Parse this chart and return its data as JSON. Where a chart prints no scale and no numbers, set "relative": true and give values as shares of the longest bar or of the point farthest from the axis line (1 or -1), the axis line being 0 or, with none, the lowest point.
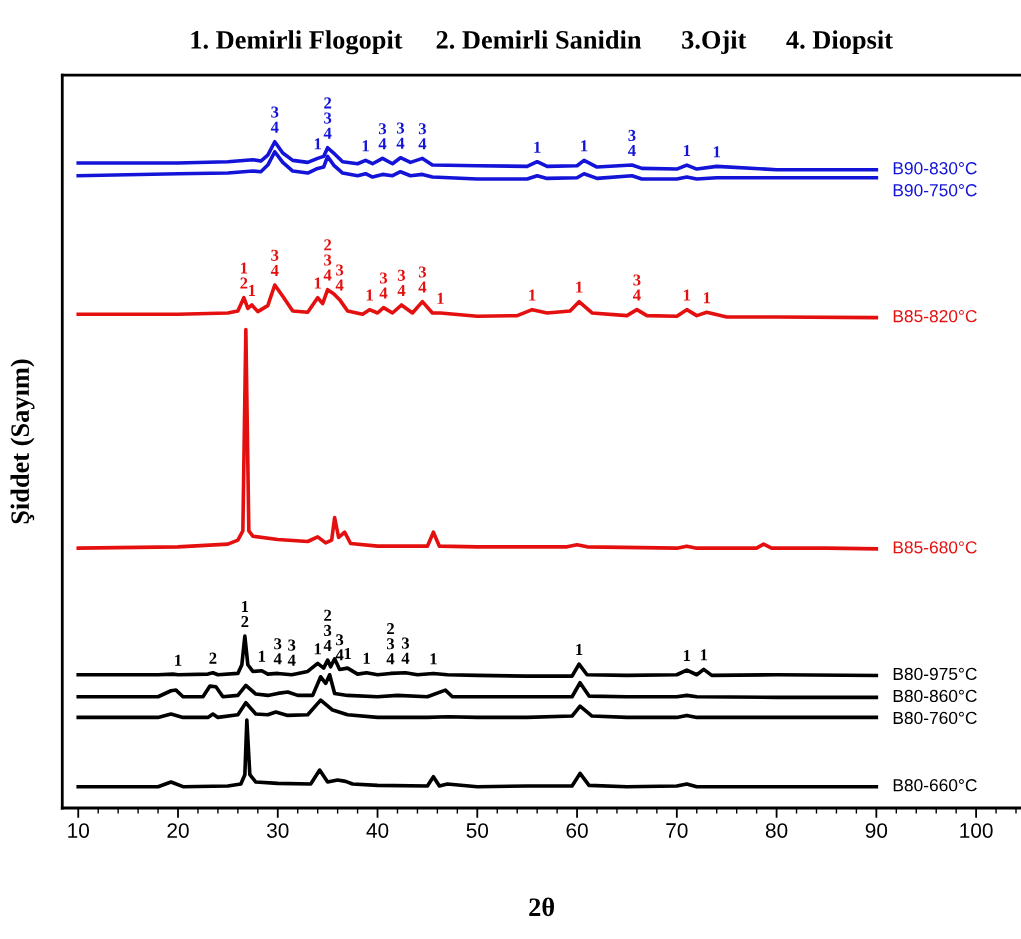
{
  "chart_data": {
    "type": "line",
    "title": "1. Demirli Flogopit     2. Demirli Sanidin      3.Ojit      4. Diopsit",
    "xlabel": "2θ",
    "ylabel": "Şiddet (Sayım)",
    "relative": true,
    "xlim": [
      8.4,
      104.5
    ],
    "xticks": [
      10,
      20,
      30,
      40,
      50,
      60,
      70,
      80,
      90,
      100
    ],
    "grid": false,
    "legend": false,
    "marker": "none",
    "line_style": "solid",
    "series": [
      {
        "name": "B90-830°C",
        "color": "#1414d8",
        "x": [
          10,
          20,
          25,
          27.5,
          28.3,
          29,
          29.7,
          30.5,
          31.5,
          33,
          34,
          34.6,
          35,
          35.6,
          36.5,
          38,
          38.8,
          39.5,
          40.5,
          41.5,
          42.3,
          43.3,
          44.5,
          45.5,
          50,
          55,
          56,
          57,
          60,
          60.7,
          62,
          65.5,
          66.5,
          70,
          71,
          72,
          74,
          80,
          90
        ],
        "values": [
          0.968,
          0.968,
          0.97,
          0.973,
          0.971,
          0.98,
          1.0,
          0.983,
          0.972,
          0.969,
          0.975,
          0.978,
          0.991,
          0.983,
          0.97,
          0.967,
          0.972,
          0.967,
          0.975,
          0.967,
          0.976,
          0.969,
          0.975,
          0.965,
          0.964,
          0.963,
          0.97,
          0.963,
          0.964,
          0.972,
          0.962,
          0.965,
          0.96,
          0.959,
          0.965,
          0.959,
          0.963,
          0.958,
          0.958
        ]
      },
      {
        "name": "B90-750°C",
        "color": "#1414d8",
        "x": [
          10,
          20,
          25,
          27.5,
          28.3,
          29,
          29.7,
          30.5,
          31.5,
          33,
          34,
          34.6,
          35,
          35.6,
          36.5,
          38,
          38.8,
          39.5,
          40.5,
          41.5,
          42.3,
          43.3,
          44.5,
          45.5,
          50,
          55,
          56,
          57,
          60,
          60.7,
          62,
          65.5,
          66.5,
          70,
          71,
          72,
          74,
          80,
          90
        ],
        "values": [
          0.949,
          0.952,
          0.953,
          0.956,
          0.955,
          0.965,
          0.985,
          0.969,
          0.956,
          0.953,
          0.96,
          0.962,
          0.978,
          0.965,
          0.953,
          0.949,
          0.952,
          0.947,
          0.951,
          0.949,
          0.955,
          0.949,
          0.951,
          0.947,
          0.944,
          0.944,
          0.949,
          0.945,
          0.946,
          0.952,
          0.945,
          0.949,
          0.944,
          0.944,
          0.947,
          0.944,
          0.946,
          0.946,
          0.946
        ]
      },
      {
        "name": "B85-820°C",
        "color": "#e41010",
        "x": [
          10,
          20,
          25,
          26,
          26.6,
          27,
          27.4,
          28,
          29,
          29.7,
          30.5,
          31.5,
          33,
          34,
          34.5,
          35,
          35.6,
          36.2,
          37,
          38.5,
          39.2,
          40,
          40.6,
          41.5,
          42.4,
          43.5,
          44.5,
          45.5,
          46.3,
          50,
          54,
          55.5,
          57,
          59.3,
          60.2,
          61.5,
          65,
          66,
          67,
          70,
          71,
          72,
          73,
          75,
          80,
          90
        ],
        "values": [
          0.741,
          0.741,
          0.743,
          0.746,
          0.766,
          0.75,
          0.755,
          0.745,
          0.754,
          0.785,
          0.768,
          0.746,
          0.744,
          0.766,
          0.757,
          0.778,
          0.772,
          0.763,
          0.746,
          0.741,
          0.748,
          0.743,
          0.751,
          0.743,
          0.755,
          0.743,
          0.76,
          0.743,
          0.743,
          0.738,
          0.739,
          0.748,
          0.743,
          0.746,
          0.76,
          0.743,
          0.739,
          0.748,
          0.739,
          0.738,
          0.748,
          0.739,
          0.744,
          0.737,
          0.737,
          0.736
        ]
      },
      {
        "name": "B85-680°C",
        "color": "#e41010",
        "x": [
          10,
          20,
          25,
          26,
          26.5,
          26.8,
          27.1,
          27.5,
          30,
          33,
          34,
          34.8,
          35.4,
          35.7,
          36.1,
          36.7,
          37.3,
          40,
          45,
          45.6,
          46.2,
          50,
          55,
          59,
          60,
          61,
          70,
          71,
          72,
          78,
          78.7,
          79.5,
          85,
          90
        ],
        "values": [
          0.39,
          0.392,
          0.396,
          0.402,
          0.416,
          0.718,
          0.416,
          0.408,
          0.403,
          0.4,
          0.407,
          0.398,
          0.402,
          0.436,
          0.406,
          0.414,
          0.397,
          0.393,
          0.393,
          0.414,
          0.393,
          0.392,
          0.392,
          0.392,
          0.395,
          0.392,
          0.39,
          0.393,
          0.39,
          0.39,
          0.396,
          0.39,
          0.39,
          0.389
        ]
      },
      {
        "name": "B80-975°C",
        "color": "#000000",
        "x": [
          10,
          18,
          19.5,
          20,
          23,
          23.5,
          24,
          26,
          26.4,
          26.7,
          27,
          27.5,
          28.4,
          29,
          30,
          31.4,
          33,
          34,
          34.6,
          35,
          35.3,
          35.7,
          36.2,
          37,
          38,
          38.9,
          40,
          41.3,
          42.8,
          44,
          45.6,
          47,
          50,
          55,
          59.5,
          60.2,
          61,
          65,
          70,
          71,
          72,
          72.7,
          73.5,
          80,
          90
        ],
        "values": [
          0.2,
          0.2,
          0.201,
          0.2,
          0.201,
          0.203,
          0.2,
          0.202,
          0.215,
          0.258,
          0.215,
          0.205,
          0.206,
          0.201,
          0.202,
          0.2,
          0.205,
          0.217,
          0.21,
          0.222,
          0.212,
          0.224,
          0.208,
          0.21,
          0.201,
          0.203,
          0.2,
          0.202,
          0.203,
          0.2,
          0.202,
          0.2,
          0.199,
          0.198,
          0.198,
          0.216,
          0.2,
          0.199,
          0.2,
          0.207,
          0.2,
          0.208,
          0.199,
          0.2,
          0.199
        ]
      },
      {
        "name": "B80-860°C",
        "color": "#000000",
        "x": [
          10,
          18,
          19.3,
          19.8,
          20.5,
          22.5,
          23.2,
          23.8,
          24.5,
          26,
          26.8,
          27.8,
          29,
          30,
          31,
          32,
          33.5,
          34.3,
          34.8,
          35.2,
          35.7,
          37,
          40,
          42,
          45,
          46.8,
          47.5,
          50,
          55,
          59.5,
          60.3,
          61.2,
          65,
          70,
          71,
          72,
          80,
          90
        ],
        "values": [
          0.167,
          0.167,
          0.176,
          0.177,
          0.167,
          0.167,
          0.183,
          0.182,
          0.167,
          0.169,
          0.184,
          0.171,
          0.169,
          0.172,
          0.174,
          0.169,
          0.169,
          0.197,
          0.187,
          0.2,
          0.172,
          0.169,
          0.167,
          0.169,
          0.167,
          0.177,
          0.167,
          0.167,
          0.167,
          0.167,
          0.188,
          0.168,
          0.167,
          0.167,
          0.169,
          0.167,
          0.166,
          0.166
        ]
      },
      {
        "name": "B80-760°C",
        "color": "#000000",
        "x": [
          10,
          18,
          19.3,
          20.5,
          23,
          23.5,
          24,
          26,
          26.8,
          27.8,
          29,
          29.8,
          31,
          33,
          34.3,
          35.5,
          37,
          40,
          45,
          47,
          50,
          55,
          59.5,
          60.3,
          61.5,
          65,
          70,
          71,
          72,
          80,
          90
        ],
        "values": [
          0.136,
          0.136,
          0.141,
          0.136,
          0.136,
          0.141,
          0.136,
          0.14,
          0.158,
          0.141,
          0.14,
          0.144,
          0.139,
          0.14,
          0.162,
          0.147,
          0.14,
          0.136,
          0.136,
          0.137,
          0.136,
          0.136,
          0.138,
          0.153,
          0.138,
          0.136,
          0.136,
          0.139,
          0.136,
          0.136,
          0.136
        ]
      },
      {
        "name": "B80-660°C",
        "color": "#000000",
        "x": [
          10,
          18,
          19.3,
          20.5,
          25,
          26.3,
          26.7,
          26.9,
          27.2,
          27.8,
          30,
          33.3,
          34.2,
          35,
          36,
          36.8,
          37.5,
          40,
          45,
          45.6,
          46.2,
          47,
          50,
          55,
          59.5,
          60.3,
          61.2,
          65,
          70,
          71,
          72,
          80,
          90
        ],
        "values": [
          0.032,
          0.032,
          0.039,
          0.032,
          0.033,
          0.036,
          0.05,
          0.132,
          0.05,
          0.039,
          0.037,
          0.036,
          0.057,
          0.039,
          0.042,
          0.04,
          0.036,
          0.034,
          0.033,
          0.047,
          0.033,
          0.036,
          0.032,
          0.033,
          0.033,
          0.052,
          0.034,
          0.032,
          0.033,
          0.036,
          0.032,
          0.032,
          0.032
        ]
      }
    ],
    "annotations": [
      {
        "text": "3\n4",
        "x": 29.7,
        "y": 1.0
      },
      {
        "text": "1",
        "x": 34,
        "y": 0.975
      },
      {
        "text": "2\n3\n4",
        "x": 35,
        "y": 0.991
      },
      {
        "text": "1",
        "x": 38.8,
        "y": 0.972
      },
      {
        "text": "3\n4",
        "x": 40.5,
        "y": 0.975
      },
      {
        "text": "3\n4",
        "x": 42.3,
        "y": 0.976
      },
      {
        "text": "3\n4",
        "x": 44.5,
        "y": 0.975
      },
      {
        "text": "1",
        "x": 56,
        "y": 0.97
      },
      {
        "text": "1",
        "x": 60.7,
        "y": 0.972
      },
      {
        "text": "3\n4",
        "x": 65.5,
        "y": 0.965
      },
      {
        "text": "1",
        "x": 71,
        "y": 0.965
      },
      {
        "text": "1",
        "x": 74,
        "y": 0.963
      },
      {
        "text": "1\n2",
        "x": 26.6,
        "y": 0.766
      },
      {
        "text": "1",
        "x": 27.4,
        "y": 0.755
      },
      {
        "text": "3\n4",
        "x": 29.7,
        "y": 0.785
      },
      {
        "text": "1",
        "x": 34,
        "y": 0.766
      },
      {
        "text": "2\n3\n4",
        "x": 35,
        "y": 0.778
      },
      {
        "text": "3\n4",
        "x": 36.2,
        "y": 0.763
      },
      {
        "text": "1",
        "x": 39.2,
        "y": 0.748
      },
      {
        "text": "3\n4",
        "x": 40.6,
        "y": 0.751
      },
      {
        "text": "3\n4",
        "x": 42.4,
        "y": 0.755
      },
      {
        "text": "3\n4",
        "x": 44.5,
        "y": 0.76
      },
      {
        "text": "1",
        "x": 46.3,
        "y": 0.743
      },
      {
        "text": "1",
        "x": 55.5,
        "y": 0.748
      },
      {
        "text": "1",
        "x": 60.2,
        "y": 0.76
      },
      {
        "text": "3\n4",
        "x": 66,
        "y": 0.748
      },
      {
        "text": "1",
        "x": 71,
        "y": 0.748
      },
      {
        "text": "1",
        "x": 73,
        "y": 0.744
      },
      {
        "text": "1",
        "x": 20,
        "y": 0.2
      },
      {
        "text": "2",
        "x": 23.5,
        "y": 0.203
      },
      {
        "text": "1\n2",
        "x": 26.7,
        "y": 0.258
      },
      {
        "text": "1",
        "x": 28.4,
        "y": 0.206
      },
      {
        "text": "3\n4",
        "x": 30,
        "y": 0.202
      },
      {
        "text": "3\n4",
        "x": 31.4,
        "y": 0.2
      },
      {
        "text": "1",
        "x": 34,
        "y": 0.217
      },
      {
        "text": "2\n3\n4",
        "x": 35,
        "y": 0.222
      },
      {
        "text": "3\n4",
        "x": 36.2,
        "y": 0.208
      },
      {
        "text": "1",
        "x": 37,
        "y": 0.21
      },
      {
        "text": "1",
        "x": 38.9,
        "y": 0.203
      },
      {
        "text": "2\n3\n4",
        "x": 41.3,
        "y": 0.202
      },
      {
        "text": "3\n4",
        "x": 42.8,
        "y": 0.203
      },
      {
        "text": "1",
        "x": 45.6,
        "y": 0.202
      },
      {
        "text": "1",
        "x": 60.2,
        "y": 0.216
      },
      {
        "text": "1",
        "x": 71,
        "y": 0.207
      },
      {
        "text": "1",
        "x": 72.7,
        "y": 0.208
      }
    ]
  }
}
